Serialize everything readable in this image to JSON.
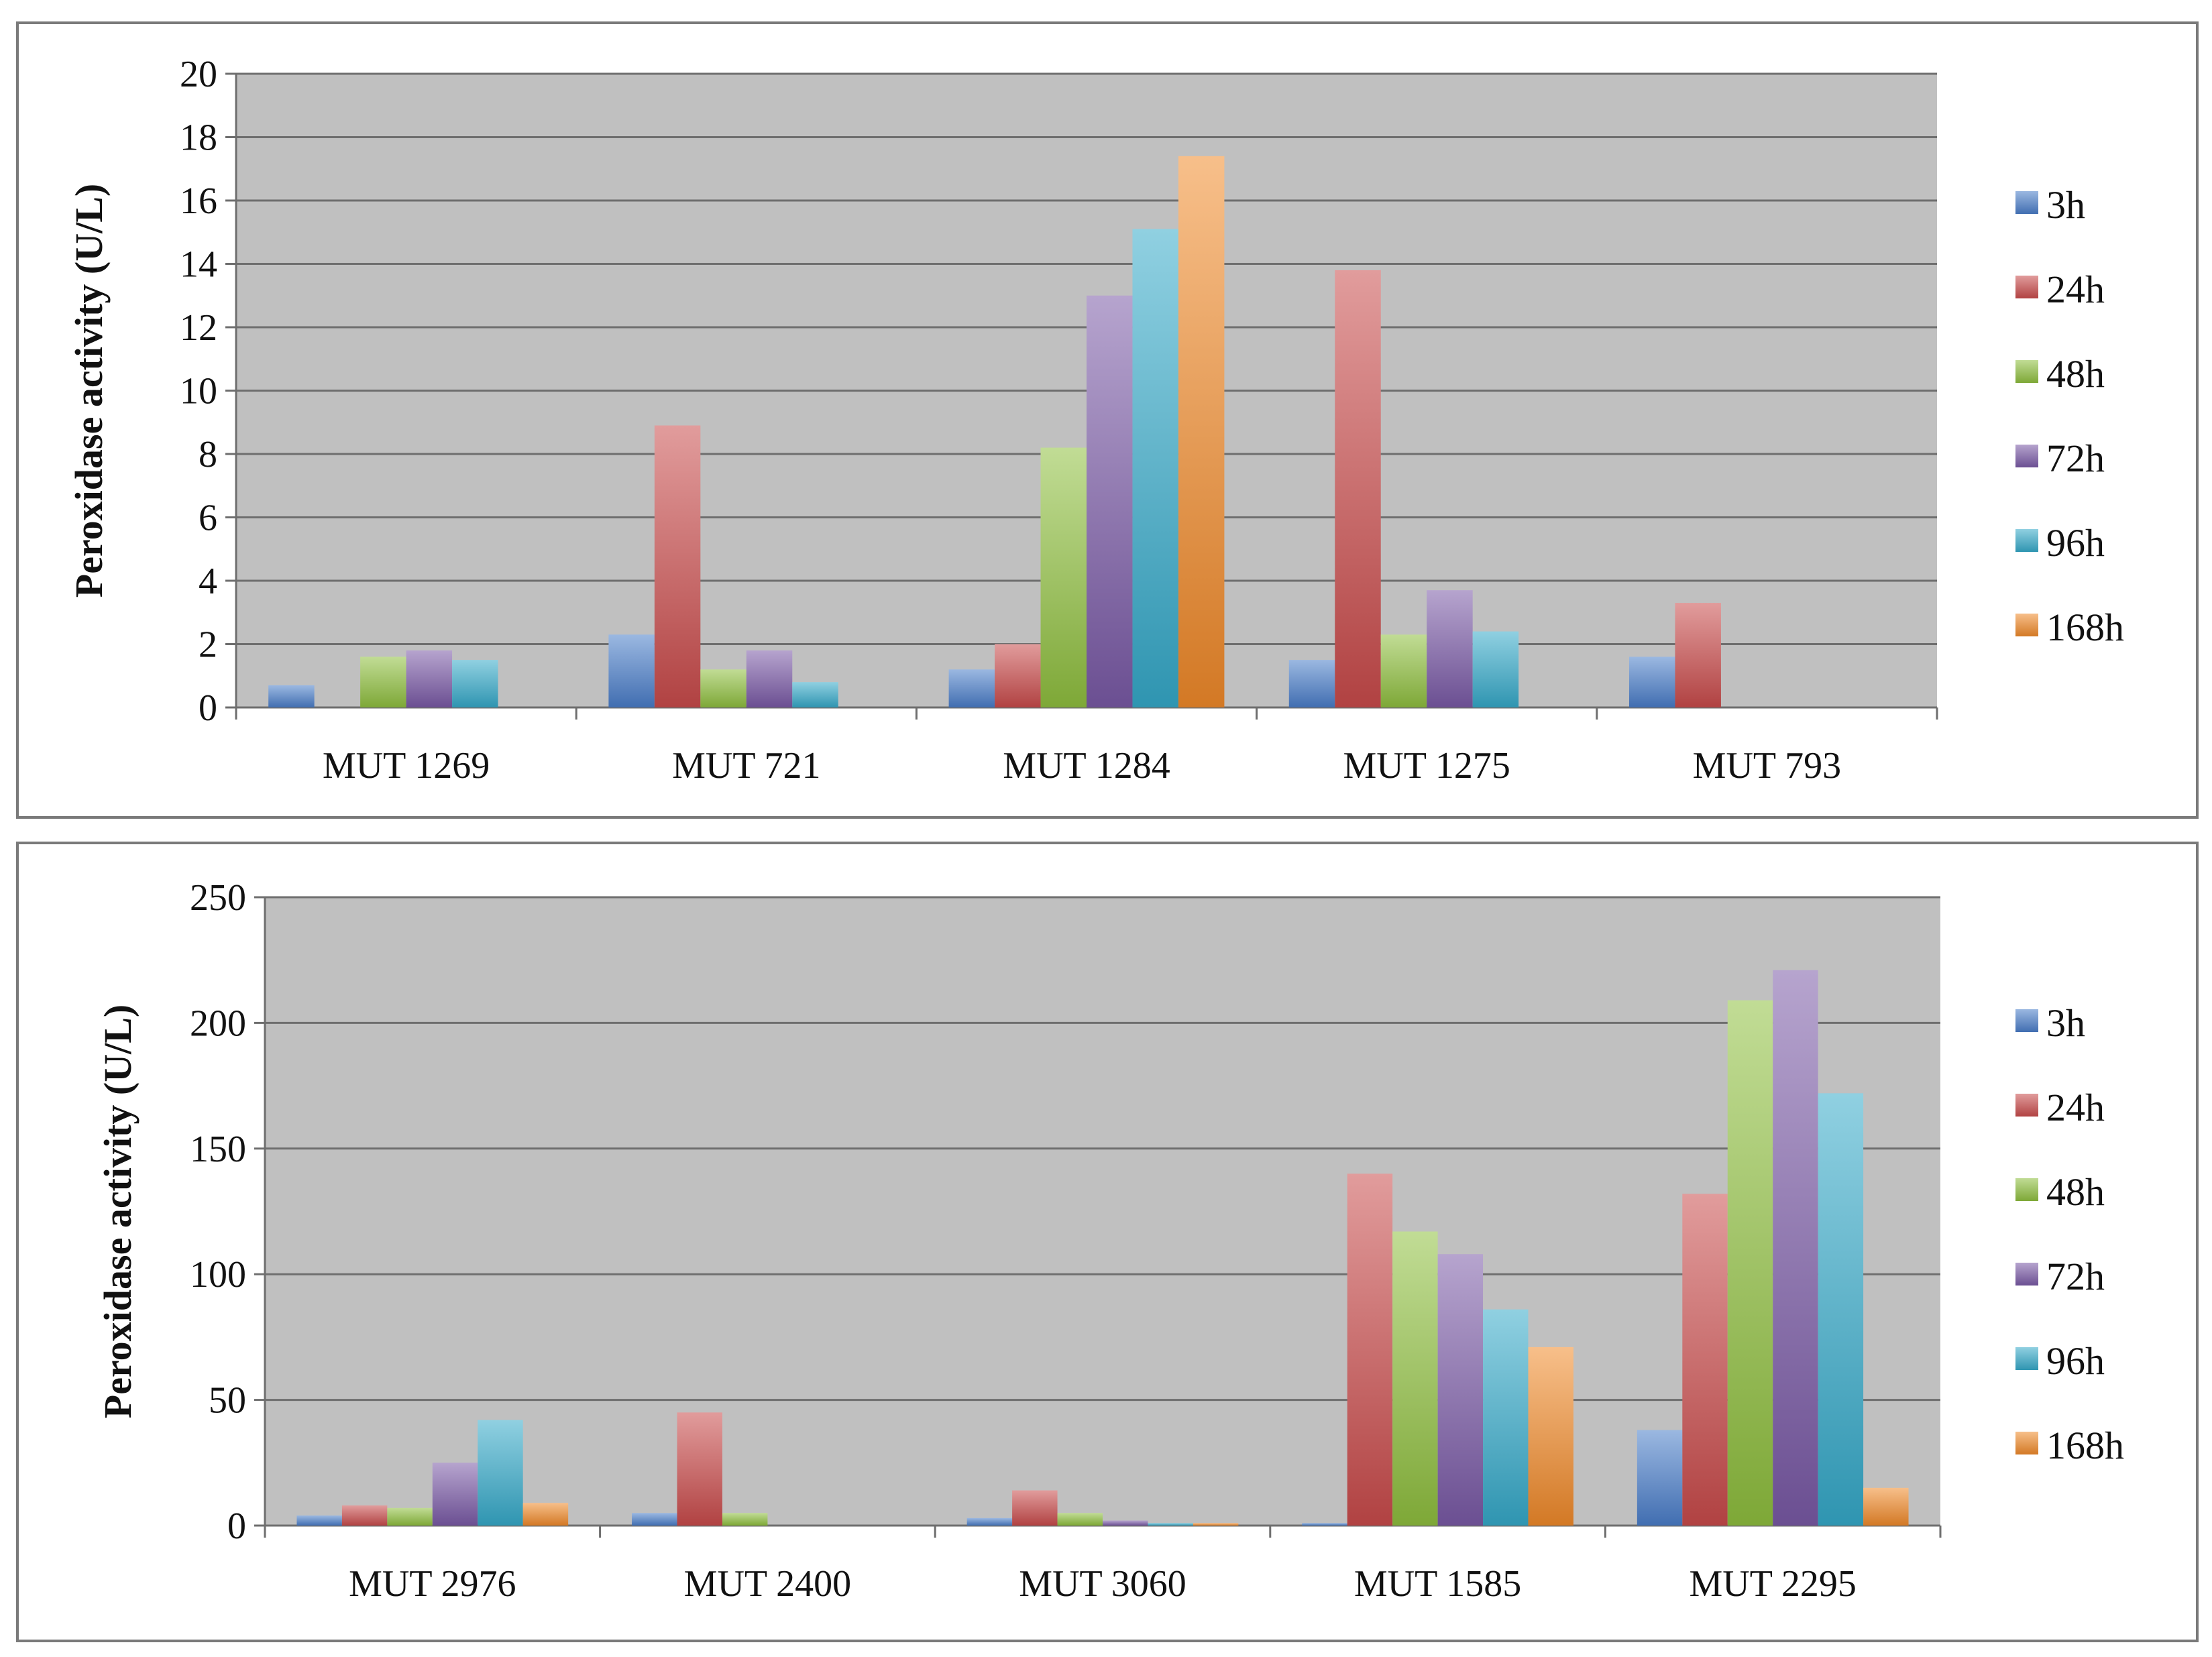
{
  "chart_data": [
    {
      "type": "bar",
      "ylabel": "Peroxidase activity (U/L)",
      "ylim": [
        0,
        20
      ],
      "yticks": [
        0,
        2,
        4,
        6,
        8,
        10,
        12,
        14,
        16,
        18,
        20
      ],
      "grid": true,
      "legend": "right",
      "categories": [
        "MUT 1269",
        "MUT 721",
        "MUT 1284",
        "MUT 1275",
        "MUT 793"
      ],
      "series": [
        {
          "name": "3h",
          "color": "#4a7dc9",
          "values": [
            0.7,
            2.3,
            1.2,
            1.5,
            1.6
          ]
        },
        {
          "name": "24h",
          "color": "#c94b4b",
          "values": [
            0,
            8.9,
            2.0,
            13.8,
            3.3
          ]
        },
        {
          "name": "48h",
          "color": "#8fbf3f",
          "values": [
            1.6,
            1.2,
            8.2,
            2.3,
            0
          ]
        },
        {
          "name": "72h",
          "color": "#7a5aa6",
          "values": [
            1.8,
            1.8,
            13.0,
            3.7,
            0
          ]
        },
        {
          "name": "96h",
          "color": "#35a9c9",
          "values": [
            1.5,
            0.8,
            15.1,
            2.4,
            0
          ]
        },
        {
          "name": "168h",
          "color": "#f08a2a",
          "values": [
            0,
            0,
            17.4,
            0,
            0
          ]
        }
      ]
    },
    {
      "type": "bar",
      "ylabel": "Peroxidase activity (U/L)",
      "ylim": [
        0,
        250
      ],
      "yticks": [
        0,
        50,
        100,
        150,
        200,
        250
      ],
      "grid": true,
      "legend": "right",
      "categories": [
        "MUT 2976",
        "MUT 2400",
        "MUT 3060",
        "MUT 1585",
        "MUT 2295"
      ],
      "series": [
        {
          "name": "3h",
          "color": "#4a7dc9",
          "values": [
            4,
            5,
            3,
            1,
            38
          ]
        },
        {
          "name": "24h",
          "color": "#c94b4b",
          "values": [
            8,
            45,
            14,
            140,
            132
          ]
        },
        {
          "name": "48h",
          "color": "#8fbf3f",
          "values": [
            7,
            5,
            5,
            117,
            209
          ]
        },
        {
          "name": "72h",
          "color": "#7a5aa6",
          "values": [
            25,
            0,
            2,
            108,
            221
          ]
        },
        {
          "name": "96h",
          "color": "#35a9c9",
          "values": [
            42,
            0,
            1,
            86,
            172
          ]
        },
        {
          "name": "168h",
          "color": "#f08a2a",
          "values": [
            9,
            0,
            1,
            71,
            15
          ]
        }
      ]
    }
  ]
}
